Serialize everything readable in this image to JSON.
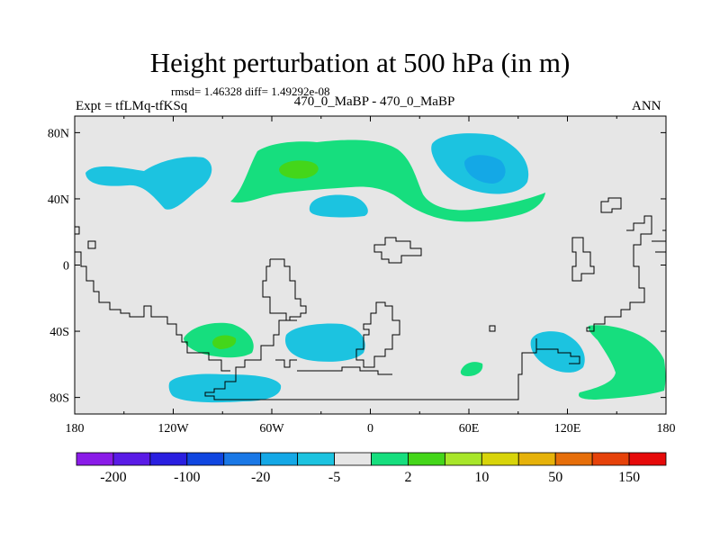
{
  "title": "Height perturbation at 500 hPa (in m)",
  "stats": "rmsd= 1.46328 diff= 1.49292e-08",
  "left_label": "Expt = tfLMq-tfKSq",
  "center_label": "470_0_MaBP - 470_0_MaBP",
  "right_label": "ANN",
  "lat_ticks": [
    {
      "label": "80N",
      "value": 80
    },
    {
      "label": "40N",
      "value": 40
    },
    {
      "label": "0",
      "value": 0
    },
    {
      "label": "40S",
      "value": -40
    },
    {
      "label": "80S",
      "value": -80
    }
  ],
  "lon_ticks": [
    {
      "label": "180",
      "value": -180
    },
    {
      "label": "120W",
      "value": -120
    },
    {
      "label": "60W",
      "value": -60
    },
    {
      "label": "0",
      "value": 0
    },
    {
      "label": "60E",
      "value": 60
    },
    {
      "label": "120E",
      "value": 120
    },
    {
      "label": "180",
      "value": 180
    }
  ],
  "colorbar": {
    "colors": [
      "#8a1be8",
      "#5a1be6",
      "#2a1fe0",
      "#1046e0",
      "#1a78e6",
      "#14a8e6",
      "#1cc3e0",
      "#e6e6e6",
      "#16de7e",
      "#44d61a",
      "#a8e62a",
      "#d8d40a",
      "#e6b20a",
      "#e66e0a",
      "#e6420a",
      "#e60a0a"
    ],
    "labels": [
      "-200",
      "-100",
      "-20",
      "-5",
      "2",
      "10",
      "50",
      "150"
    ]
  },
  "colors": {
    "land_background": "#e6e6e6",
    "coastline": "#000000",
    "frame": "#000000"
  },
  "regions": [
    {
      "name": "north-pacific-low",
      "color": "#1cc3e0"
    },
    {
      "name": "north-atlantic-high",
      "color": "#16de7e"
    },
    {
      "name": "north-atlantic-high-core",
      "color": "#44d61a"
    },
    {
      "name": "atlantic-low",
      "color": "#1cc3e0"
    },
    {
      "name": "siberian-low",
      "color": "#1cc3e0"
    },
    {
      "name": "siberian-low-core",
      "color": "#14a8e6"
    },
    {
      "name": "south-pacific-high",
      "color": "#16de7e"
    },
    {
      "name": "south-pacific-high-core",
      "color": "#44d61a"
    },
    {
      "name": "southern-ocean-low-west",
      "color": "#1cc3e0"
    },
    {
      "name": "south-atlantic-low",
      "color": "#1cc3e0"
    },
    {
      "name": "indian-ocean-low",
      "color": "#1cc3e0"
    },
    {
      "name": "south-indian-high",
      "color": "#16de7e"
    },
    {
      "name": "australian-high",
      "color": "#16de7e"
    }
  ]
}
